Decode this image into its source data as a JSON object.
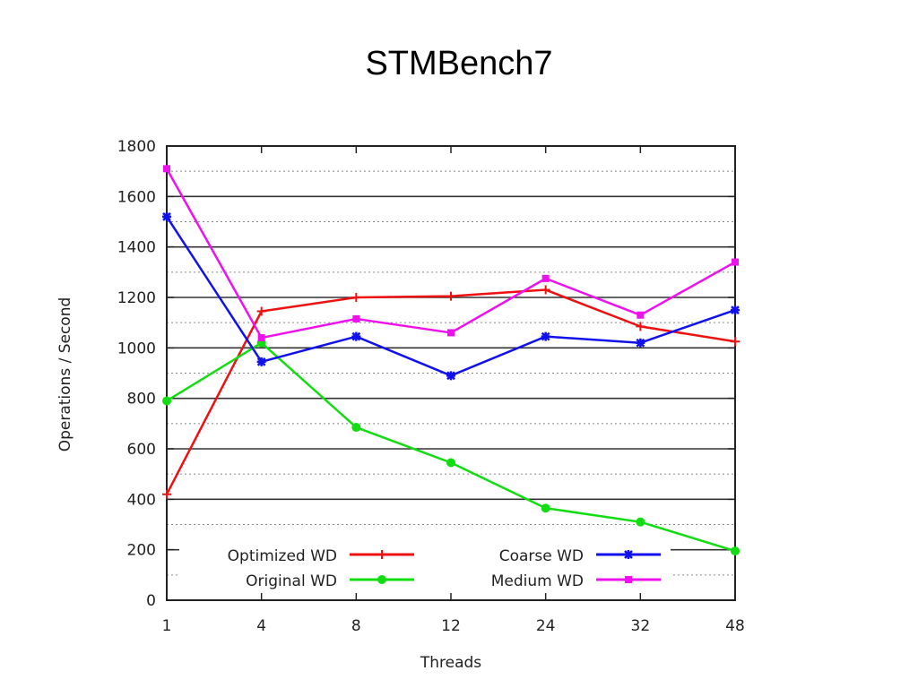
{
  "slide": {
    "title": "STMBench7"
  },
  "chart_data": {
    "type": "line",
    "title": "STMBench7",
    "xlabel": "Threads",
    "ylabel": "Operations / Second",
    "categories": [
      "1",
      "4",
      "8",
      "12",
      "24",
      "32",
      "48"
    ],
    "ylim": [
      0,
      1800
    ],
    "yticks": [
      0,
      200,
      400,
      600,
      800,
      1000,
      1200,
      1400,
      1600,
      1800
    ],
    "grid": true,
    "legend_position": "bottom-center",
    "series": [
      {
        "name": "Optimized WD",
        "color": "#ee1111",
        "marker": "plus",
        "values": [
          420,
          1145,
          1200,
          1205,
          1230,
          1085,
          1025
        ]
      },
      {
        "name": "Original WD",
        "color": "#11dd11",
        "marker": "circle",
        "values": [
          790,
          1020,
          685,
          545,
          365,
          310,
          195
        ]
      },
      {
        "name": "Coarse WD",
        "color": "#1111ee",
        "marker": "star",
        "values": [
          1520,
          945,
          1045,
          890,
          1045,
          1020,
          1150
        ]
      },
      {
        "name": "Medium WD",
        "color": "#ee11ee",
        "marker": "square",
        "values": [
          1710,
          1040,
          1115,
          1060,
          1275,
          1130,
          1340
        ]
      }
    ]
  }
}
